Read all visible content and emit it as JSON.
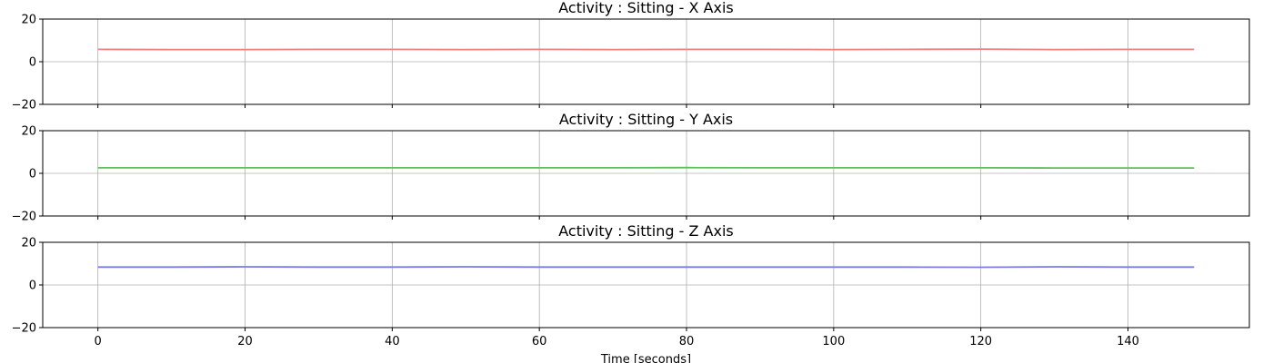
{
  "chart_data": [
    {
      "type": "line",
      "title": "Activity : Sitting - X Axis",
      "xlabel": "",
      "ylabel": "",
      "xlim": [
        -7.5,
        156.5
      ],
      "ylim": [
        -20,
        20
      ],
      "xticks": [
        0,
        20,
        40,
        60,
        80,
        100,
        120,
        140
      ],
      "yticks": [
        -20,
        0,
        20
      ],
      "show_x_tick_labels": false,
      "grid": true,
      "series": [
        {
          "color": "#f08080",
          "x": [
            0,
            10,
            20,
            30,
            40,
            50,
            60,
            70,
            80,
            90,
            100,
            110,
            120,
            130,
            140,
            149
          ],
          "y": [
            5.8,
            5.7,
            5.7,
            5.8,
            5.8,
            5.7,
            5.8,
            5.7,
            5.8,
            5.8,
            5.7,
            5.8,
            5.9,
            5.7,
            5.8,
            5.8
          ]
        }
      ]
    },
    {
      "type": "line",
      "title": "Activity : Sitting - Y Axis",
      "xlabel": "",
      "ylabel": "",
      "xlim": [
        -7.5,
        156.5
      ],
      "ylim": [
        -20,
        20
      ],
      "xticks": [
        0,
        20,
        40,
        60,
        80,
        100,
        120,
        140
      ],
      "yticks": [
        -20,
        0,
        20
      ],
      "show_x_tick_labels": false,
      "grid": true,
      "series": [
        {
          "color": "#5cbf5c",
          "x": [
            0,
            10,
            20,
            30,
            40,
            50,
            60,
            70,
            80,
            90,
            100,
            110,
            120,
            130,
            140,
            149
          ],
          "y": [
            2.6,
            2.6,
            2.6,
            2.6,
            2.6,
            2.6,
            2.6,
            2.6,
            2.7,
            2.6,
            2.6,
            2.6,
            2.6,
            2.5,
            2.5,
            2.5
          ]
        }
      ]
    },
    {
      "type": "line",
      "title": "Activity : Sitting - Z Axis",
      "xlabel": "Time [seconds]",
      "ylabel": "",
      "xlim": [
        -7.5,
        156.5
      ],
      "ylim": [
        -20,
        20
      ],
      "xticks": [
        0,
        20,
        40,
        60,
        80,
        100,
        120,
        140
      ],
      "yticks": [
        -20,
        0,
        20
      ],
      "show_x_tick_labels": true,
      "grid": true,
      "series": [
        {
          "color": "#7b7bea",
          "x": [
            0,
            10,
            20,
            30,
            40,
            50,
            60,
            70,
            80,
            90,
            100,
            110,
            120,
            130,
            140,
            149
          ],
          "y": [
            8.4,
            8.4,
            8.5,
            8.4,
            8.4,
            8.5,
            8.4,
            8.4,
            8.4,
            8.4,
            8.4,
            8.4,
            8.3,
            8.5,
            8.4,
            8.4
          ]
        }
      ]
    }
  ]
}
